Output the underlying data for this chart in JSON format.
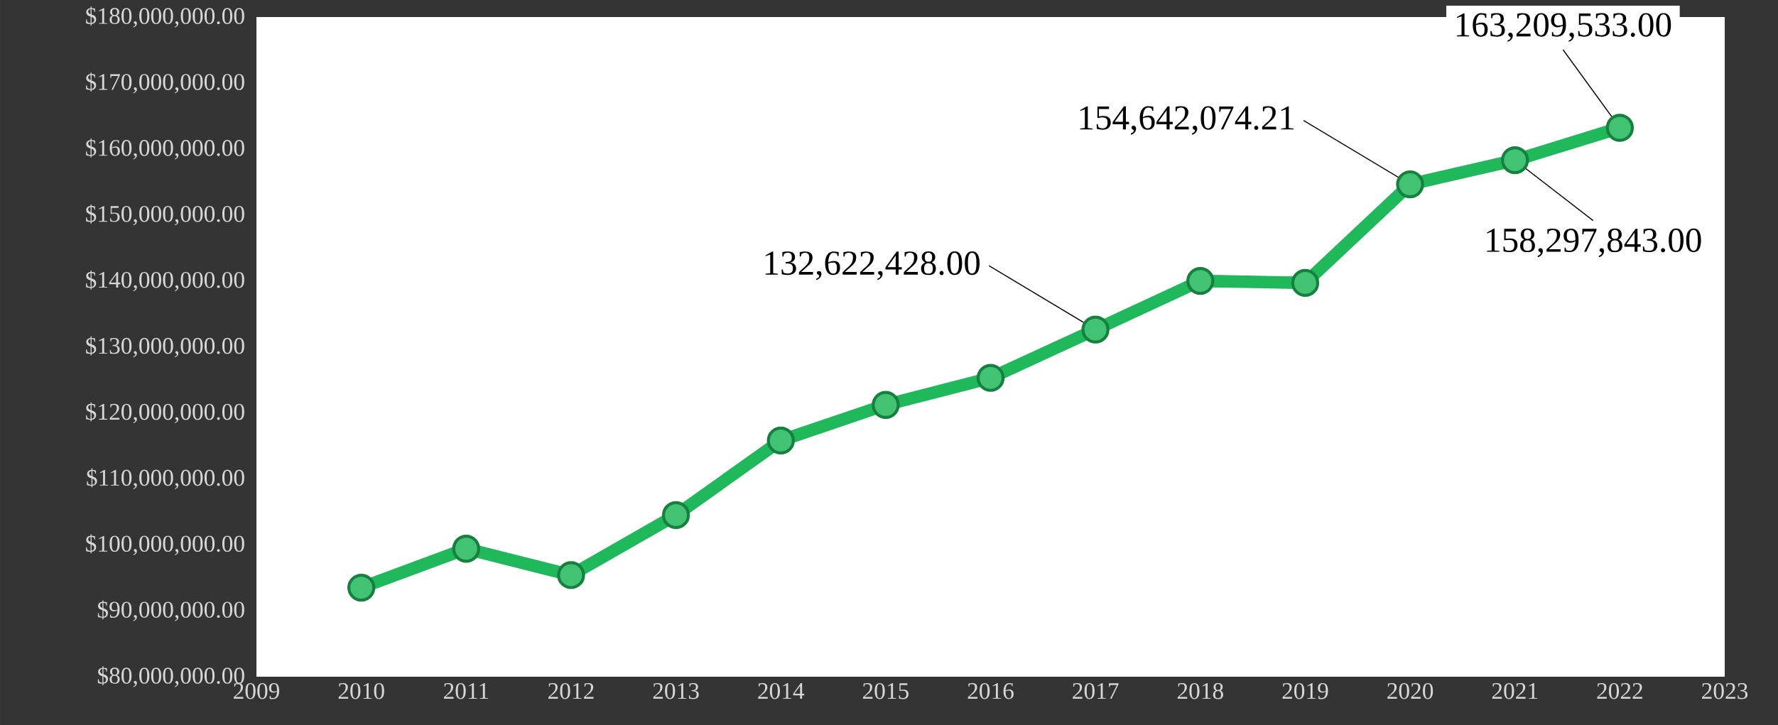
{
  "chart_data": {
    "type": "line",
    "x": [
      2010,
      2011,
      2012,
      2013,
      2014,
      2015,
      2016,
      2017,
      2018,
      2019,
      2020,
      2021,
      2022
    ],
    "series": [
      {
        "color": "#1fb85a",
        "values": [
          93500000,
          99400000,
          95400000,
          104500000,
          115800000,
          121200000,
          125300000,
          132622428.0,
          140000000,
          139700000,
          154642074.21,
          158297843.0,
          163209533.0
        ],
        "value_labels": [
          null,
          null,
          null,
          null,
          null,
          null,
          null,
          "132,622,428.00",
          null,
          null,
          "154,642,074.21",
          "158,297,843.00",
          "163,209,533.00"
        ]
      }
    ],
    "marker": "circle",
    "xlim": [
      2009,
      2023
    ],
    "xticks": [
      2009,
      2010,
      2011,
      2012,
      2013,
      2014,
      2015,
      2016,
      2017,
      2018,
      2019,
      2020,
      2021,
      2022,
      2023
    ],
    "ylim": [
      80000000,
      180000000
    ],
    "yticks": [
      {
        "value": 80000000,
        "label": "$80,000,000.00"
      },
      {
        "value": 90000000,
        "label": "$90,000,000.00"
      },
      {
        "value": 100000000,
        "label": "$100,000,000.00"
      },
      {
        "value": 110000000,
        "label": "$110,000,000.00"
      },
      {
        "value": 120000000,
        "label": "$120,000,000.00"
      },
      {
        "value": 130000000,
        "label": "$130,000,000.00"
      },
      {
        "value": 140000000,
        "label": "$140,000,000.00"
      },
      {
        "value": 150000000,
        "label": "$150,000,000.00"
      },
      {
        "value": 160000000,
        "label": "$160,000,000.00"
      },
      {
        "value": 170000000,
        "label": "$170,000,000.00"
      },
      {
        "value": 180000000,
        "label": "$180,000,000.00"
      }
    ]
  }
}
